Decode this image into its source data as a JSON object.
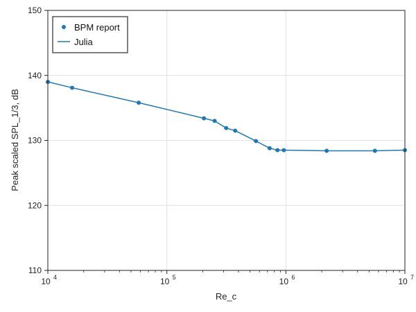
{
  "chart_data": {
    "type": "line",
    "title": "",
    "xlabel": "Re_c",
    "ylabel": "Peak scaled SPL_1/3, dB",
    "x_scale": "log",
    "xlim": [
      10000,
      10000000
    ],
    "ylim": [
      110,
      150
    ],
    "x_ticks": [
      {
        "value": 10000,
        "base": "10",
        "exp": "4"
      },
      {
        "value": 100000,
        "base": "10",
        "exp": "5"
      },
      {
        "value": 1000000,
        "base": "10",
        "exp": "6"
      },
      {
        "value": 10000000,
        "base": "10",
        "exp": "7"
      }
    ],
    "y_ticks": [
      110,
      120,
      130,
      140,
      150
    ],
    "grid": true,
    "legend": "top-left",
    "series": [
      {
        "name": "BPM report",
        "kind": "scatter",
        "color": "#1f77b4",
        "points": [
          [
            10000,
            139.0
          ],
          [
            16000,
            138.1
          ],
          [
            58000,
            135.8
          ],
          [
            205000,
            133.4
          ],
          [
            252000,
            133.0
          ],
          [
            315000,
            131.9
          ],
          [
            375000,
            131.5
          ],
          [
            560000,
            129.9
          ],
          [
            730000,
            128.8
          ],
          [
            850000,
            128.5
          ],
          [
            960000,
            128.5
          ],
          [
            2200000,
            128.4
          ],
          [
            5600000,
            128.4
          ],
          [
            10000000,
            128.5
          ]
        ]
      },
      {
        "name": "Julia",
        "kind": "line",
        "color": "#1f77b4",
        "points": [
          [
            10000,
            139.0
          ],
          [
            16000,
            138.1
          ],
          [
            58000,
            135.8
          ],
          [
            205000,
            133.4
          ],
          [
            252000,
            133.0
          ],
          [
            315000,
            131.9
          ],
          [
            375000,
            131.5
          ],
          [
            560000,
            129.9
          ],
          [
            730000,
            128.8
          ],
          [
            850000,
            128.5
          ],
          [
            960000,
            128.5
          ],
          [
            2200000,
            128.4
          ],
          [
            5600000,
            128.4
          ],
          [
            10000000,
            128.5
          ]
        ]
      }
    ]
  }
}
